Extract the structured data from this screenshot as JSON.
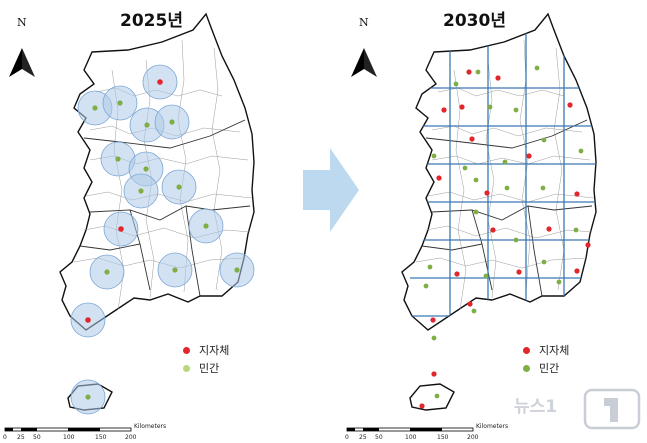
{
  "panels": [
    {
      "title": "2025년",
      "north": "N",
      "legend": {
        "gov": "지자체",
        "civ": "민간"
      }
    },
    {
      "title": "2030년",
      "north": "N",
      "legend": {
        "gov": "지자체",
        "civ": "민간"
      }
    }
  ],
  "scale": {
    "ticks": [
      "0",
      "25",
      "50",
      "100",
      "150",
      "200"
    ],
    "unit": "Kilometers"
  },
  "colors": {
    "gov": "#e1262c",
    "civ": "#7fae45",
    "buffer": "#aecbe8",
    "grid": "#3c78b4",
    "arrow": "#bcd9ef"
  },
  "map_data": {
    "panel_2025": {
      "gov": [
        [
          160,
          82
        ],
        [
          121,
          229
        ],
        [
          88,
          320
        ]
      ],
      "civ": [
        [
          95,
          108
        ],
        [
          120,
          103
        ],
        [
          147,
          125
        ],
        [
          172,
          122
        ],
        [
          118,
          159
        ],
        [
          146,
          169
        ],
        [
          141,
          191
        ],
        [
          179,
          187
        ],
        [
          206,
          226
        ],
        [
          107,
          272
        ],
        [
          175,
          270
        ],
        [
          237,
          270
        ],
        [
          88,
          397
        ]
      ]
    },
    "panel_2030": {
      "gov": [
        [
          469,
          72
        ],
        [
          498,
          78
        ],
        [
          570,
          105
        ],
        [
          444,
          110
        ],
        [
          462,
          107
        ],
        [
          472,
          139
        ],
        [
          529,
          156
        ],
        [
          439,
          178
        ],
        [
          577,
          194
        ],
        [
          487,
          193
        ],
        [
          493,
          230
        ],
        [
          549,
          229
        ],
        [
          588,
          245
        ],
        [
          519,
          272
        ],
        [
          457,
          274
        ],
        [
          577,
          271
        ],
        [
          470,
          304
        ],
        [
          433,
          320
        ],
        [
          434,
          374
        ],
        [
          422,
          406
        ]
      ],
      "civ": [
        [
          478,
          72
        ],
        [
          537,
          68
        ],
        [
          456,
          84
        ],
        [
          490,
          107
        ],
        [
          516,
          110
        ],
        [
          544,
          140
        ],
        [
          581,
          151
        ],
        [
          434,
          156
        ],
        [
          505,
          162
        ],
        [
          465,
          168
        ],
        [
          476,
          180
        ],
        [
          507,
          188
        ],
        [
          543,
          188
        ],
        [
          476,
          212
        ],
        [
          576,
          230
        ],
        [
          516,
          240
        ],
        [
          430,
          267
        ],
        [
          486,
          276
        ],
        [
          544,
          262
        ],
        [
          426,
          286
        ],
        [
          559,
          282
        ],
        [
          474,
          311
        ],
        [
          434,
          338
        ],
        [
          437,
          396
        ]
      ]
    }
  },
  "watermark": "뉴스1"
}
